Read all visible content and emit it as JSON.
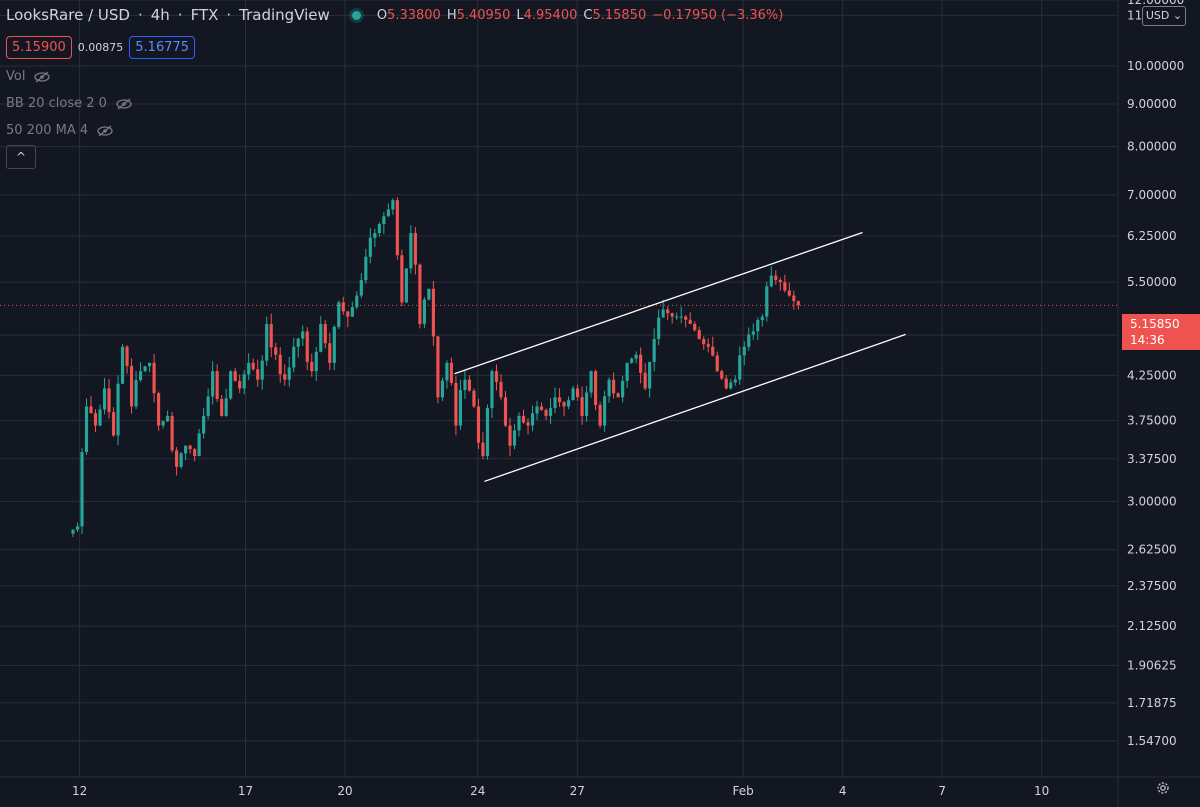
{
  "header": {
    "symbol": "LooksRare / USD",
    "interval": "4h",
    "exchange": "FTX",
    "source": "TradingView",
    "ohlc": {
      "o_label": "O",
      "o_value": "5.33800",
      "h_label": "H",
      "h_value": "5.40950",
      "l_label": "L",
      "l_value": "4.95400",
      "c_label": "C",
      "c_value": "5.15850"
    },
    "change": "−0.17950 (−3.36%)"
  },
  "trade": {
    "sell_price": "5.15900",
    "spread": "0.00875",
    "buy_price": "5.16775"
  },
  "indicators": [
    {
      "label": "Vol"
    },
    {
      "label": "BB 20 close 2 0"
    },
    {
      "label": "50 200 MA 4"
    }
  ],
  "collapse_label": "^",
  "currency_button": "USD",
  "last_price": {
    "value": "5.15850",
    "countdown": "14:36"
  },
  "colors": {
    "background": "#131722",
    "up": "#26a69a",
    "down": "#ef5350",
    "grid": "#2a2e39",
    "trendline": "#ffffff"
  },
  "icons": {
    "status": "green-dot-icon",
    "visibility": "eye-slash-icon",
    "settings": "gear-icon"
  },
  "chart_data": {
    "type": "candlestick",
    "scale": "log",
    "ylim": [
      1.4,
      12.0
    ],
    "y_ticks": [
      "12.00000",
      "11.50000",
      "10.00000",
      "9.00000",
      "8.00000",
      "7.00000",
      "6.25000",
      "5.50000",
      "4.75000",
      "4.25000",
      "3.75000",
      "3.37500",
      "3.00000",
      "2.62500",
      "2.37500",
      "2.12500",
      "1.90625",
      "1.71875",
      "1.54700"
    ],
    "x_ticks": [
      "12",
      "17",
      "20",
      "24",
      "27",
      "Feb",
      "4",
      "7",
      "10"
    ],
    "x_tick_days": [
      12,
      17,
      20,
      24,
      27,
      32,
      35,
      38,
      41
    ],
    "xlim_days": [
      9.6,
      43.3
    ],
    "candles_per_day": 6,
    "first_candle_day": 11.8,
    "closes": [
      2.8,
      3.9,
      3.7,
      4.1,
      3.6,
      4.6,
      3.9,
      4.3,
      4.4,
      3.7,
      3.8,
      3.3,
      3.5,
      3.4,
      3.8,
      4.3,
      3.8,
      4.3,
      4.1,
      4.4,
      4.2,
      4.9,
      4.5,
      4.2,
      4.6,
      4.8,
      4.3,
      4.9,
      4.4,
      5.2,
      5.0,
      5.3,
      5.9,
      6.3,
      6.6,
      6.9,
      5.2,
      6.3,
      4.9,
      5.4,
      4.0,
      4.4,
      3.7,
      4.2,
      3.9,
      3.4,
      4.3,
      4.0,
      3.5,
      3.8,
      3.7,
      3.9,
      3.8,
      4.0,
      3.9,
      4.1,
      3.8,
      4.3,
      3.7,
      4.2,
      4.0,
      4.4,
      4.5,
      4.1,
      4.7,
      5.1,
      5.0,
      5.0,
      4.9,
      4.7,
      4.6,
      4.3,
      4.1,
      4.2,
      4.6,
      4.8,
      5.0,
      5.6,
      5.5,
      5.3,
      5.16
    ],
    "channel": {
      "upper": {
        "from": {
          "day": 23.3,
          "price": 4.27
        },
        "to": {
          "day": 35.6,
          "price": 6.31
        }
      },
      "lower": {
        "from": {
          "day": 24.2,
          "price": 3.17
        },
        "to": {
          "day": 36.9,
          "price": 4.76
        }
      }
    },
    "last_price": 5.1585
  }
}
